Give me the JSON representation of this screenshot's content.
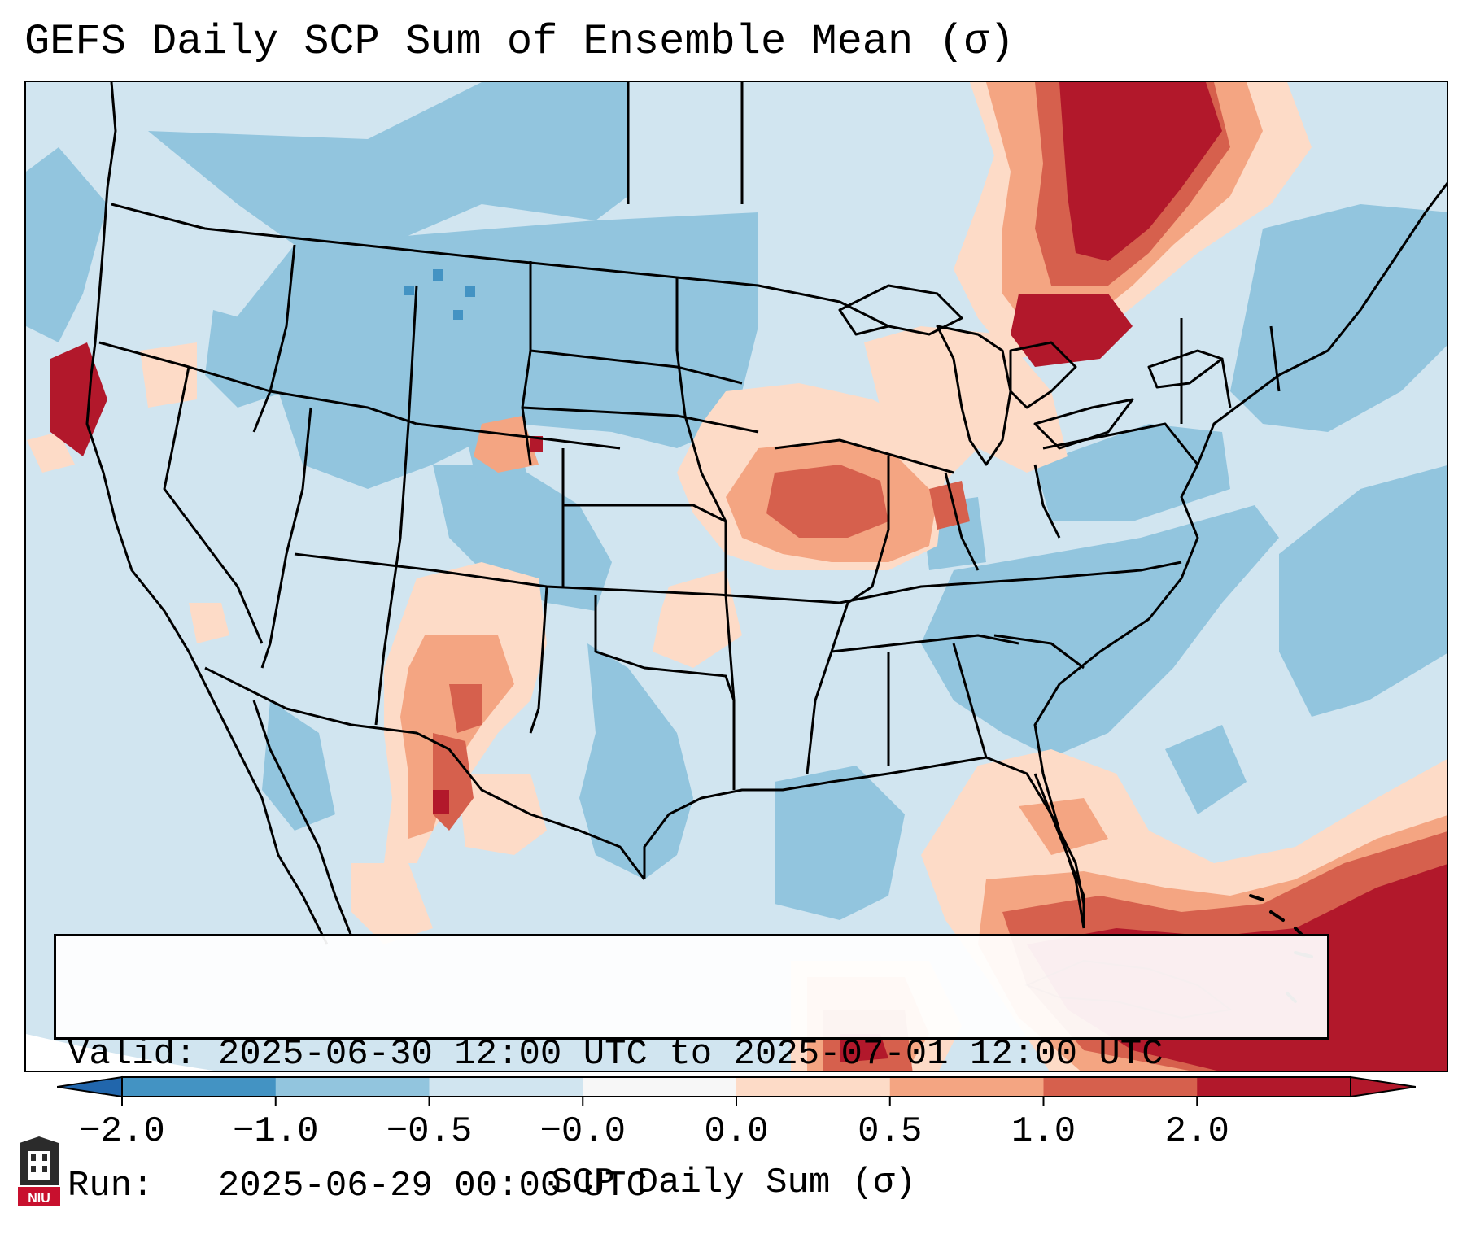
{
  "title": "GEFS Daily SCP Sum of Ensemble Mean (σ)",
  "info": {
    "valid": "Valid: 2025-06-30 12:00 UTC to 2025-07-01 12:00 UTC",
    "run": "Run:   2025-06-29 00:00 UTC"
  },
  "colorbar": {
    "label": "SCP Daily Sum (σ)",
    "ticks": [
      "−2.0",
      "−1.0",
      "−0.5",
      "−0.0",
      "0.0",
      "0.5",
      "1.0",
      "2.0"
    ],
    "colors": [
      "#4393c3",
      "#92c5de",
      "#d1e5f0",
      "#f7f7f7",
      "#fddbc7",
      "#f4a582",
      "#d6604d",
      "#b2182b"
    ],
    "under_color": "#2166ac",
    "over_color": "#b2182b"
  },
  "logo": {
    "text": "NIU"
  },
  "legend_colors": {
    "strong_negative": "#4393c3",
    "negative": "#92c5de",
    "weak_negative": "#d1e5f0",
    "weak_positive": "#fddbc7",
    "positive": "#f4a582",
    "strong_positive": "#d6604d",
    "extreme_positive": "#b2182b"
  }
}
